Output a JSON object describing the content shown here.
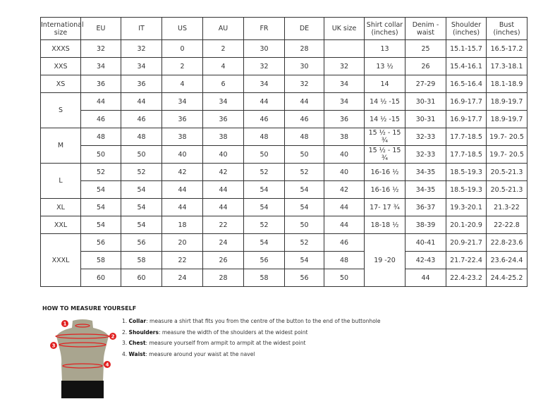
{
  "headers": [
    "International size",
    "EU",
    "IT",
    "US",
    "AU",
    "FR",
    "DE",
    "UK size",
    "Shirt collar (inches)",
    "Denim - waist",
    "Shoulder (inches)",
    "Bust (inches)"
  ],
  "groups": [
    {
      "size": "XXXS",
      "rows": [
        [
          "32",
          "32",
          "0",
          "2",
          "30",
          "28",
          "",
          "13",
          "25",
          "15.1-15.7",
          "16.5-17.2"
        ]
      ]
    },
    {
      "size": "XXS",
      "rows": [
        [
          "34",
          "34",
          "2",
          "4",
          "32",
          "30",
          "32",
          "13 ½",
          "26",
          "15.4-16.1",
          "17.3-18.1"
        ]
      ]
    },
    {
      "size": "XS",
      "rows": [
        [
          "36",
          "36",
          "4",
          "6",
          "34",
          "32",
          "34",
          "14",
          "27-29",
          "16.5-16.4",
          "18.1-18.9"
        ]
      ]
    },
    {
      "size": "S",
      "rows": [
        [
          "44",
          "44",
          "34",
          "34",
          "44",
          "44",
          "34",
          "14 ½ -15",
          "30-31",
          "16.9-17.7",
          "18.9-19.7"
        ],
        [
          "46",
          "46",
          "36",
          "36",
          "46",
          "46",
          "36",
          "14 ½ -15",
          "30-31",
          "16.9-17.7",
          "18.9-19.7"
        ]
      ]
    },
    {
      "size": "M",
      "rows": [
        [
          "48",
          "48",
          "38",
          "38",
          "48",
          "48",
          "38",
          "15 ½ - 15 ¾",
          "32-33",
          "17.7-18.5",
          "19.7- 20.5"
        ],
        [
          "50",
          "50",
          "40",
          "40",
          "50",
          "50",
          "40",
          "15 ½ - 15 ¾",
          "32-33",
          "17.7-18.5",
          "19.7- 20.5"
        ]
      ]
    },
    {
      "size": "L",
      "rows": [
        [
          "52",
          "52",
          "42",
          "42",
          "52",
          "52",
          "40",
          "16-16 ½",
          "34-35",
          "18.5-19.3",
          "20.5-21.3"
        ],
        [
          "54",
          "54",
          "44",
          "44",
          "54",
          "54",
          "42",
          "16-16 ½",
          "34-35",
          "18.5-19.3",
          "20.5-21.3"
        ]
      ]
    },
    {
      "size": "XL",
      "rows": [
        [
          "54",
          "54",
          "44",
          "44",
          "54",
          "54",
          "44",
          "17- 17 ¾",
          "36-37",
          "19.3-20.1",
          "21.3-22"
        ]
      ]
    },
    {
      "size": "XXL",
      "rows": [
        [
          "54",
          "54",
          "18",
          "22",
          "52",
          "50",
          "44",
          "18-18 ½",
          "38-39",
          "20.1-20.9",
          "22-22.8"
        ]
      ]
    },
    {
      "size": "XXXL",
      "collar_merged": "19 -20",
      "rows": [
        [
          "56",
          "56",
          "20",
          "24",
          "54",
          "52",
          "46",
          "40-41",
          "20.9-21.7",
          "22.8-23.6"
        ],
        [
          "58",
          "58",
          "22",
          "26",
          "56",
          "54",
          "48",
          "42-43",
          "21.7-22.4",
          "23.6-24.4"
        ],
        [
          "60",
          "60",
          "24",
          "28",
          "58",
          "56",
          "50",
          "44",
          "22.4-23.2",
          "24.4-25.2"
        ]
      ]
    }
  ],
  "guide": {
    "title": "HOW TO MEASURE YOURSELF",
    "markers": [
      "1",
      "2",
      "3",
      "4"
    ],
    "steps": [
      {
        "num": "1.",
        "term": "Collar",
        "text": ": measure a shirt that fits you from the centre of the button to the end of the buttonhole"
      },
      {
        "num": "2.",
        "term": "Shoulders",
        "text": ": measure the width of the shoulders at the widest point"
      },
      {
        "num": "3.",
        "term": "Chest",
        "text": ": measure yourself from armpit to armpit at the widest point"
      },
      {
        "num": "4.",
        "term": "Waist",
        "text": ": measure around your waist at the navel"
      }
    ]
  },
  "colors": {
    "marker": "#e02020",
    "body": "#a9a58f",
    "shorts": "#111111"
  }
}
